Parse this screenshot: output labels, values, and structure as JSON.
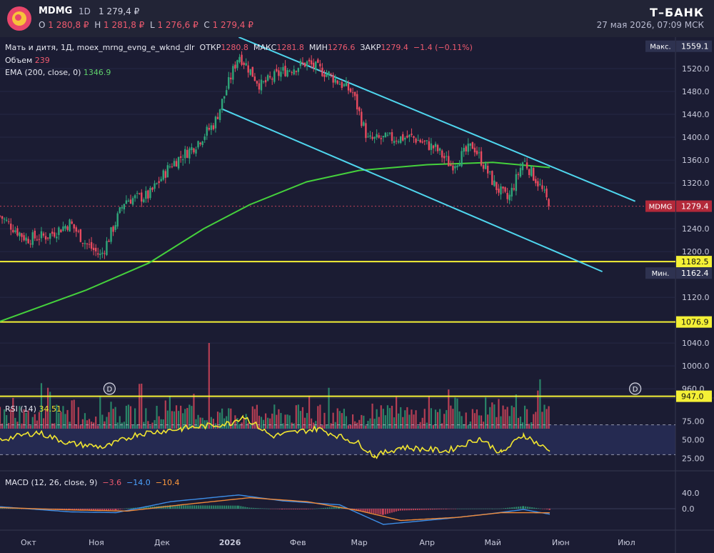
{
  "header": {
    "ticker": "MDMG",
    "timeframe": "1D",
    "last_price": "1 279,4 ₽",
    "ohlc": [
      {
        "k": "O",
        "v": "1 280,8 ₽"
      },
      {
        "k": "H",
        "v": "1 281,8 ₽"
      },
      {
        "k": "L",
        "v": "1 276,6 ₽"
      },
      {
        "k": "C",
        "v": "1 279,4 ₽"
      }
    ],
    "brand": "Т–БАНК",
    "datetime": "27 мая 2026, 07:09 МСК"
  },
  "legend": {
    "main_name": "Мать и дитя, 1Д, moex_mrng_evng_e_wknd_dlr",
    "open_label": "ОТКР",
    "open_value": "1280.8",
    "high_label": "МАКС",
    "high_value": "1281.8",
    "low_label": "МИН",
    "low_value": "1276.6",
    "close_label": "ЗАКР",
    "close_value": "1279.4",
    "change": "−1.4 (−0.11%)",
    "volume_label": "Объем",
    "volume_value": "239",
    "ema_label": "EMA (200, close, 0)",
    "ema_value": "1346.9",
    "rsi_label": "RSI (14)",
    "rsi_value": "34.51",
    "macd_label": "MACD (12, 26, close, 9)",
    "macd_values": [
      "−3.6",
      "−14.0",
      "−10.4"
    ]
  },
  "colors": {
    "up": "#2fa67a",
    "down": "#e84a5f",
    "ema": "#45d13c",
    "channel": "#4fd6ee",
    "support": "#f4f036",
    "rsi": "#f2e630",
    "macd": "#3d8ee8",
    "signal": "#f08a3a"
  },
  "price_axis": {
    "ticks": [
      "1520.0",
      "1480.0",
      "1440.0",
      "1400.0",
      "1360.0",
      "1320.0",
      "1240.0",
      "1200.0",
      "1120.0",
      "1040.0",
      "1000.0",
      "960.0"
    ],
    "badges": [
      {
        "label": "Макс.",
        "value": "1559.1"
      },
      {
        "label": "MDMG",
        "value": "1279.4"
      },
      {
        "value": "1182.5"
      },
      {
        "label": "Мин.",
        "value": "1162.4"
      },
      {
        "value": "1076.9"
      },
      {
        "value": "947.0"
      }
    ]
  },
  "rsi_axis": {
    "ticks": [
      "75.00",
      "50.00",
      "25.00"
    ]
  },
  "macd_axis": {
    "ticks": [
      "40.0",
      "0.0"
    ]
  },
  "time_axis": {
    "labels": [
      "Окт",
      "Ноя",
      "Дек",
      "2026",
      "Фев",
      "Мар",
      "Апр",
      "Май",
      "Июн",
      "Июл"
    ]
  },
  "event_markers": [
    "D",
    "D"
  ],
  "chart_data": {
    "type": "candlestick",
    "y_range": [
      944,
      1575
    ],
    "close_path": [
      {
        "date": "2025-09-18",
        "close": 1262
      },
      {
        "date": "2025-09-30",
        "close": 1222
      },
      {
        "date": "2025-10-10",
        "close": 1228
      },
      {
        "date": "2025-10-20",
        "close": 1250
      },
      {
        "date": "2025-10-27",
        "close": 1215
      },
      {
        "date": "2025-11-03",
        "close": 1192
      },
      {
        "date": "2025-11-07",
        "close": 1226
      },
      {
        "date": "2025-11-14",
        "close": 1290
      },
      {
        "date": "2025-11-25",
        "close": 1298
      },
      {
        "date": "2025-12-05",
        "close": 1352
      },
      {
        "date": "2025-12-15",
        "close": 1382
      },
      {
        "date": "2025-12-25",
        "close": 1425
      },
      {
        "date": "2026-01-05",
        "close": 1545
      },
      {
        "date": "2026-01-15",
        "close": 1490
      },
      {
        "date": "2026-01-25",
        "close": 1515
      },
      {
        "date": "2026-02-05",
        "close": 1530
      },
      {
        "date": "2026-02-15",
        "close": 1510
      },
      {
        "date": "2026-02-26",
        "close": 1478
      },
      {
        "date": "2026-03-05",
        "close": 1395
      },
      {
        "date": "2026-03-15",
        "close": 1398
      },
      {
        "date": "2026-03-25",
        "close": 1400
      },
      {
        "date": "2026-04-05",
        "close": 1380
      },
      {
        "date": "2026-04-12",
        "close": 1350
      },
      {
        "date": "2026-04-22",
        "close": 1386
      },
      {
        "date": "2026-05-02",
        "close": 1315
      },
      {
        "date": "2026-05-08",
        "close": 1290
      },
      {
        "date": "2026-05-15",
        "close": 1360
      },
      {
        "date": "2026-05-22",
        "close": 1318
      },
      {
        "date": "2026-05-27",
        "close": 1279.4
      }
    ],
    "ema200": [
      {
        "date": "2025-09-18",
        "value": 1078
      },
      {
        "date": "2025-10-27",
        "value": 1132
      },
      {
        "date": "2025-11-25",
        "value": 1180
      },
      {
        "date": "2025-12-20",
        "value": 1240
      },
      {
        "date": "2026-01-10",
        "value": 1282
      },
      {
        "date": "2026-02-05",
        "value": 1322
      },
      {
        "date": "2026-03-01",
        "value": 1342
      },
      {
        "date": "2026-04-01",
        "value": 1352
      },
      {
        "date": "2026-05-01",
        "value": 1356
      },
      {
        "date": "2026-05-27",
        "value": 1347
      }
    ],
    "channel_upper": [
      {
        "date": "2026-01-05",
        "value": 1575
      },
      {
        "date": "2026-07-05",
        "value": 1288
      }
    ],
    "channel_lower": [
      {
        "date": "2025-12-28",
        "value": 1450
      },
      {
        "date": "2026-06-20",
        "value": 1165
      }
    ],
    "support_levels": [
      1182.5,
      1076.9,
      947.0
    ],
    "max": 1559.1,
    "min": 1162.4,
    "last": 1279.4,
    "volume_last": 239,
    "rsi": {
      "period": 14,
      "last": 34.51,
      "levels": [
        70,
        30
      ],
      "path": [
        {
          "date": "2025-09-18",
          "value": 50
        },
        {
          "date": "2025-10-05",
          "value": 60
        },
        {
          "date": "2025-10-20",
          "value": 45
        },
        {
          "date": "2025-11-05",
          "value": 40
        },
        {
          "date": "2025-11-20",
          "value": 58
        },
        {
          "date": "2025-12-10",
          "value": 65
        },
        {
          "date": "2026-01-01",
          "value": 72
        },
        {
          "date": "2026-01-07",
          "value": 82
        },
        {
          "date": "2026-01-20",
          "value": 55
        },
        {
          "date": "2026-02-10",
          "value": 65
        },
        {
          "date": "2026-03-01",
          "value": 45
        },
        {
          "date": "2026-03-08",
          "value": 28
        },
        {
          "date": "2026-03-20",
          "value": 40
        },
        {
          "date": "2026-04-10",
          "value": 35
        },
        {
          "date": "2026-04-25",
          "value": 52
        },
        {
          "date": "2026-05-05",
          "value": 32
        },
        {
          "date": "2026-05-15",
          "value": 57
        },
        {
          "date": "2026-05-27",
          "value": 34.51
        }
      ]
    },
    "macd": {
      "params": [
        12,
        26,
        9
      ],
      "last": {
        "histogram": -3.6,
        "macd": -14.0,
        "signal": -10.4
      },
      "macd_path": [
        {
          "date": "2025-09-18",
          "value": 5
        },
        {
          "date": "2025-10-20",
          "value": -8
        },
        {
          "date": "2025-11-10",
          "value": -10
        },
        {
          "date": "2025-12-05",
          "value": 18
        },
        {
          "date": "2026-01-05",
          "value": 35
        },
        {
          "date": "2026-01-25",
          "value": 20
        },
        {
          "date": "2026-02-20",
          "value": 10
        },
        {
          "date": "2026-03-12",
          "value": -40
        },
        {
          "date": "2026-04-10",
          "value": -25
        },
        {
          "date": "2026-05-01",
          "value": -12
        },
        {
          "date": "2026-05-15",
          "value": -2
        },
        {
          "date": "2026-05-27",
          "value": -14
        }
      ],
      "signal_path": [
        {
          "date": "2025-09-18",
          "value": 3
        },
        {
          "date": "2025-10-20",
          "value": -3
        },
        {
          "date": "2025-11-15",
          "value": -6
        },
        {
          "date": "2025-12-10",
          "value": 10
        },
        {
          "date": "2026-01-10",
          "value": 28
        },
        {
          "date": "2026-02-05",
          "value": 18
        },
        {
          "date": "2026-03-01",
          "value": -5
        },
        {
          "date": "2026-03-20",
          "value": -30
        },
        {
          "date": "2026-04-15",
          "value": -22
        },
        {
          "date": "2026-05-05",
          "value": -10
        },
        {
          "date": "2026-05-27",
          "value": -10.4
        }
      ]
    }
  }
}
